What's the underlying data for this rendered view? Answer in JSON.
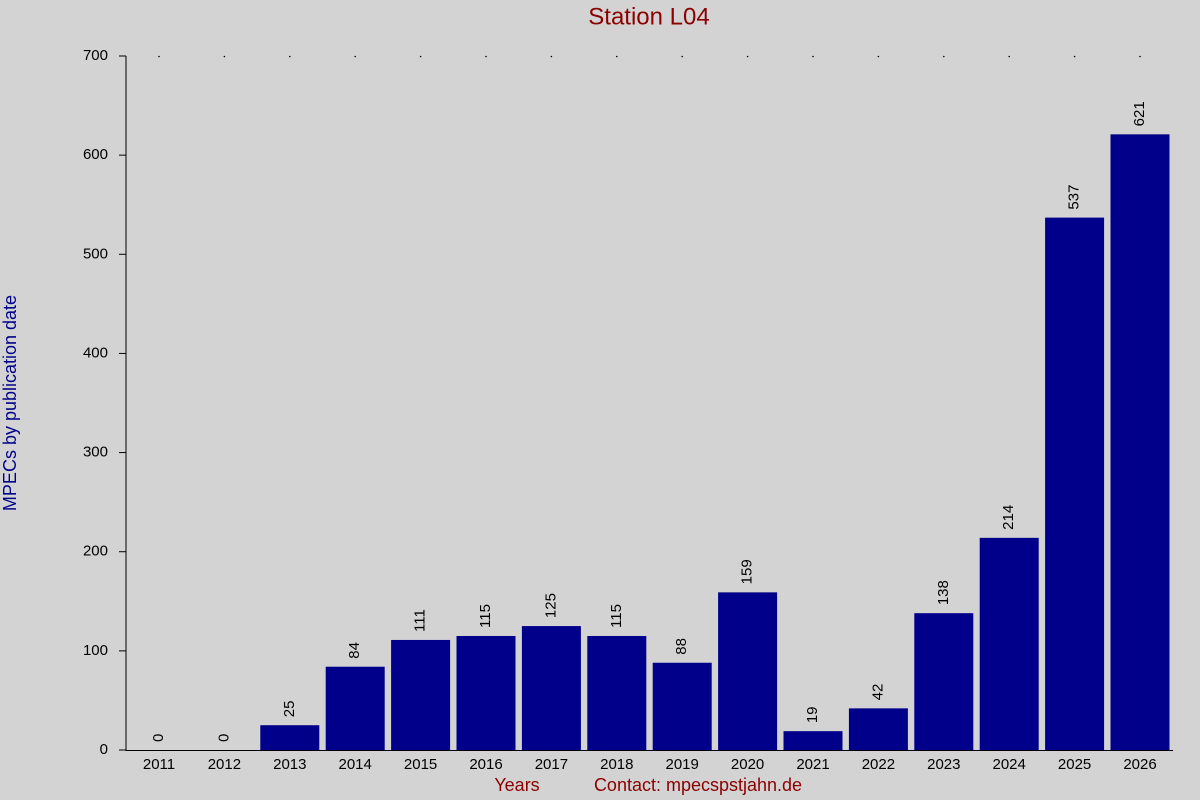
{
  "chart_data": {
    "type": "bar",
    "title": "Station L04",
    "x_label": "Years",
    "contact": "Contact: mpecspstjahn.de",
    "y_label": "MPECs by publication date",
    "categories": [
      "2011",
      "2012",
      "2013",
      "2014",
      "2015",
      "2016",
      "2017",
      "2018",
      "2019",
      "2020",
      "2021",
      "2022",
      "2023",
      "2024",
      "2025",
      "2026"
    ],
    "values": [
      0,
      0,
      25,
      84,
      111,
      115,
      125,
      115,
      88,
      159,
      19,
      42,
      138,
      214,
      537,
      621
    ],
    "color": "#00008b",
    "ylim": [
      0,
      700
    ],
    "yticks": [
      0,
      100,
      200,
      300,
      400,
      500,
      600,
      700
    ],
    "grid": false
  }
}
